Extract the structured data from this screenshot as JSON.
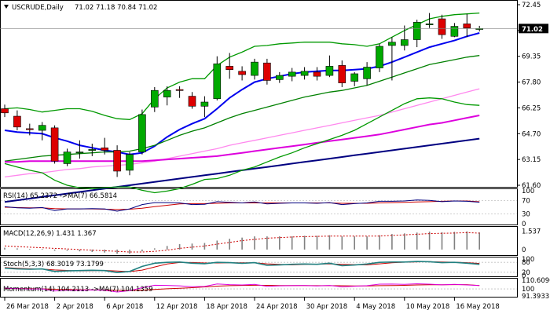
{
  "header": {
    "symbol": "USCRUDE,Daily",
    "ohlc": "71.02 71.18 70.84 71.02"
  },
  "price_panel": {
    "y_ticks": [
      "72.45",
      "70.90",
      "69.35",
      "67.80",
      "66.25",
      "64.70",
      "63.15",
      "61.60"
    ],
    "current_price": "71.02"
  },
  "rsi_panel": {
    "label": "RSI(14) 65.2372  ->MA(7) 66.5814",
    "y_ticks": [
      "100",
      "70",
      "30",
      "0"
    ]
  },
  "macd_panel": {
    "label": "MACD(12,26,9) 1.431 1.367",
    "y_ticks": [
      "1.537",
      "0"
    ]
  },
  "stoch_panel": {
    "label": "Stoch(5,3,3) 68.3019 73.1799",
    "y_ticks": [
      "100",
      "80",
      "20",
      "0"
    ]
  },
  "momentum_panel": {
    "label": "Momentum(14) 104.2113  ->MA(7) 104.1359",
    "y_ticks": [
      "110.6096",
      "100",
      "91.3933"
    ]
  },
  "x_labels": [
    "26 Mar 2018",
    "2 Apr 2018",
    "6 Apr 2018",
    "12 Apr 2018",
    "18 Apr 2018",
    "24 Apr 2018",
    "30 Apr 2018",
    "4 May 2018",
    "10 May 2018",
    "16 May 2018"
  ],
  "colors": {
    "bull": "#00aa00",
    "bear": "#dd0000",
    "ma_blue": "#0000ee",
    "ma_green": "#008000",
    "ma_magenta": "#dd00dd",
    "ma_pink": "#ff88ee",
    "ma_navy": "#000080",
    "bb_green": "#009900",
    "osc_teal": "#208080",
    "osc_red": "#cc0000",
    "grid": "#c0c0c0"
  },
  "chart_data": {
    "type": "candlestick",
    "title": "USCRUDE,Daily",
    "ylim": [
      61.6,
      72.45
    ],
    "candles": [
      {
        "o": 66.2,
        "h": 66.45,
        "l": 65.7,
        "c": 65.95
      },
      {
        "o": 65.75,
        "h": 66.1,
        "l": 64.9,
        "c": 65.1
      },
      {
        "o": 65.0,
        "h": 65.3,
        "l": 64.6,
        "c": 64.95
      },
      {
        "o": 64.9,
        "h": 65.4,
        "l": 64.3,
        "c": 65.2
      },
      {
        "o": 65.05,
        "h": 65.2,
        "l": 62.9,
        "c": 63.05
      },
      {
        "o": 62.9,
        "h": 63.8,
        "l": 62.75,
        "c": 63.6
      },
      {
        "o": 63.6,
        "h": 64.3,
        "l": 63.2,
        "c": 63.6
      },
      {
        "o": 63.75,
        "h": 64.1,
        "l": 63.35,
        "c": 63.75
      },
      {
        "o": 63.85,
        "h": 64.45,
        "l": 63.45,
        "c": 63.7
      },
      {
        "o": 63.7,
        "h": 64.0,
        "l": 62.1,
        "c": 62.45
      },
      {
        "o": 62.5,
        "h": 63.6,
        "l": 62.2,
        "c": 63.45
      },
      {
        "o": 63.6,
        "h": 66.15,
        "l": 63.45,
        "c": 65.85
      },
      {
        "o": 66.3,
        "h": 67.5,
        "l": 66.0,
        "c": 67.3
      },
      {
        "o": 66.9,
        "h": 67.55,
        "l": 66.4,
        "c": 67.3
      },
      {
        "o": 67.35,
        "h": 67.55,
        "l": 66.85,
        "c": 67.3
      },
      {
        "o": 66.95,
        "h": 67.2,
        "l": 66.2,
        "c": 66.35
      },
      {
        "o": 66.35,
        "h": 66.95,
        "l": 65.7,
        "c": 66.6
      },
      {
        "o": 66.8,
        "h": 69.35,
        "l": 66.7,
        "c": 68.9
      },
      {
        "o": 68.75,
        "h": 69.55,
        "l": 68.0,
        "c": 68.55
      },
      {
        "o": 68.45,
        "h": 68.75,
        "l": 67.9,
        "c": 68.25
      },
      {
        "o": 68.2,
        "h": 69.2,
        "l": 67.95,
        "c": 69.0
      },
      {
        "o": 68.95,
        "h": 69.2,
        "l": 67.65,
        "c": 67.9
      },
      {
        "o": 67.95,
        "h": 68.4,
        "l": 67.75,
        "c": 68.2
      },
      {
        "o": 68.15,
        "h": 68.65,
        "l": 67.85,
        "c": 68.4
      },
      {
        "o": 68.2,
        "h": 68.7,
        "l": 67.95,
        "c": 68.45
      },
      {
        "o": 68.4,
        "h": 68.7,
        "l": 67.9,
        "c": 68.15
      },
      {
        "o": 68.2,
        "h": 69.4,
        "l": 68.1,
        "c": 68.75
      },
      {
        "o": 68.8,
        "h": 69.1,
        "l": 67.5,
        "c": 67.75
      },
      {
        "o": 67.85,
        "h": 68.4,
        "l": 67.55,
        "c": 68.3
      },
      {
        "o": 68.0,
        "h": 69.0,
        "l": 67.6,
        "c": 68.7
      },
      {
        "o": 68.65,
        "h": 70.1,
        "l": 68.4,
        "c": 69.95
      },
      {
        "o": 70.0,
        "h": 70.5,
        "l": 67.9,
        "c": 70.2
      },
      {
        "o": 70.0,
        "h": 71.2,
        "l": 69.7,
        "c": 70.35
      },
      {
        "o": 70.35,
        "h": 71.55,
        "l": 69.9,
        "c": 71.4
      },
      {
        "o": 71.3,
        "h": 71.95,
        "l": 71.05,
        "c": 71.3
      },
      {
        "o": 71.6,
        "h": 71.85,
        "l": 70.4,
        "c": 70.65
      },
      {
        "o": 70.55,
        "h": 71.35,
        "l": 70.5,
        "c": 71.15
      },
      {
        "o": 71.3,
        "h": 71.9,
        "l": 70.5,
        "c": 71.05
      },
      {
        "o": 71.02,
        "h": 71.18,
        "l": 70.84,
        "c": 71.02
      }
    ],
    "moving_averages": [
      {
        "name": "ma_fast",
        "color": "#0000ee",
        "values": [
          64.9,
          64.8,
          64.75,
          64.7,
          64.45,
          64.25,
          64.0,
          63.85,
          63.7,
          63.6,
          63.45,
          63.55,
          63.95,
          64.5,
          64.95,
          65.3,
          65.6,
          66.2,
          66.85,
          67.35,
          67.8,
          68.0,
          68.15,
          68.3,
          68.4,
          68.45,
          68.5,
          68.5,
          68.55,
          68.6,
          68.75,
          69.0,
          69.3,
          69.6,
          69.9,
          70.1,
          70.3,
          70.55,
          70.75
        ]
      },
      {
        "name": "ma_mid",
        "color": "#008000",
        "values": [
          63.05,
          63.15,
          63.25,
          63.35,
          63.4,
          63.45,
          63.5,
          63.55,
          63.6,
          63.6,
          63.65,
          63.8,
          64.0,
          64.3,
          64.6,
          64.85,
          65.05,
          65.35,
          65.65,
          65.9,
          66.1,
          66.3,
          66.5,
          66.7,
          66.9,
          67.05,
          67.2,
          67.3,
          67.45,
          67.6,
          67.85,
          68.1,
          68.35,
          68.6,
          68.85,
          69.0,
          69.15,
          69.3,
          69.4
        ]
      },
      {
        "name": "ma_pink",
        "color": "#ff88ee",
        "values": [
          62.1,
          62.2,
          62.3,
          62.35,
          62.45,
          62.55,
          62.6,
          62.7,
          62.75,
          62.8,
          62.85,
          62.95,
          63.05,
          63.2,
          63.35,
          63.5,
          63.65,
          63.8,
          64.0,
          64.15,
          64.3,
          64.45,
          64.6,
          64.75,
          64.9,
          65.05,
          65.2,
          65.35,
          65.5,
          65.65,
          65.8,
          66.0,
          66.2,
          66.4,
          66.6,
          66.8,
          67.0,
          67.2,
          67.4
        ]
      },
      {
        "name": "ma_magenta",
        "color": "#dd00dd",
        "values": [
          63.0,
          63.0,
          63.05,
          63.05,
          63.05,
          63.05,
          63.05,
          63.05,
          63.05,
          63.05,
          63.05,
          63.05,
          63.1,
          63.15,
          63.2,
          63.25,
          63.3,
          63.35,
          63.45,
          63.55,
          63.65,
          63.75,
          63.85,
          63.95,
          64.05,
          64.15,
          64.25,
          64.35,
          64.45,
          64.55,
          64.65,
          64.8,
          64.95,
          65.1,
          65.25,
          65.35,
          65.5,
          65.65,
          65.8
        ]
      },
      {
        "name": "ma_navy",
        "color": "#000080",
        "values": [
          60.6,
          60.7,
          60.8,
          60.9,
          61.0,
          61.1,
          61.2,
          61.3,
          61.4,
          61.5,
          61.6,
          61.7,
          61.8,
          61.9,
          62.0,
          62.1,
          62.2,
          62.3,
          62.4,
          62.5,
          62.6,
          62.7,
          62.8,
          62.9,
          63.0,
          63.1,
          63.2,
          63.3,
          63.4,
          63.5,
          63.6,
          63.7,
          63.8,
          63.9,
          64.0,
          64.1,
          64.2,
          64.3,
          64.4
        ]
      },
      {
        "name": "bb_upper",
        "color": "#009900",
        "values": [
          66.2,
          66.25,
          66.15,
          66.0,
          66.1,
          66.2,
          66.2,
          66.05,
          65.8,
          65.6,
          65.55,
          65.9,
          66.8,
          67.45,
          67.8,
          68.0,
          68.0,
          68.8,
          69.3,
          69.6,
          69.95,
          70.0,
          70.1,
          70.15,
          70.2,
          70.2,
          70.2,
          70.1,
          70.05,
          69.95,
          70.1,
          70.5,
          70.9,
          71.25,
          71.6,
          71.75,
          71.85,
          71.9,
          71.95
        ]
      },
      {
        "name": "bb_lower",
        "color": "#009900",
        "values": [
          62.9,
          62.7,
          62.5,
          62.35,
          61.9,
          61.6,
          61.45,
          61.4,
          61.45,
          61.5,
          61.5,
          61.3,
          61.15,
          61.25,
          61.4,
          61.65,
          61.95,
          62.0,
          62.2,
          62.5,
          62.7,
          63.0,
          63.3,
          63.55,
          63.85,
          64.1,
          64.35,
          64.6,
          64.9,
          65.3,
          65.7,
          66.1,
          66.5,
          66.8,
          66.85,
          66.8,
          66.6,
          66.45,
          66.4
        ]
      }
    ],
    "rsi": [
      52,
      48,
      47,
      49,
      40,
      45,
      45,
      46,
      45,
      38,
      45,
      58,
      64,
      64,
      63,
      58,
      59,
      67,
      65,
      63,
      66,
      60,
      62,
      63,
      63,
      62,
      64,
      58,
      61,
      63,
      68,
      68,
      69,
      72,
      71,
      67,
      69,
      68,
      65.2
    ],
    "rsi_ma": [
      50,
      49,
      48,
      48,
      46,
      45,
      45,
      45,
      44,
      43,
      44,
      47,
      52,
      56,
      60,
      61,
      61,
      62,
      63,
      63,
      63,
      63,
      63,
      63,
      63,
      63,
      63,
      62,
      62,
      62,
      63,
      64,
      65,
      66,
      67,
      68,
      69,
      69,
      66.6
    ],
    "macd_hist": [
      0.15,
      0.1,
      0.05,
      0.05,
      -0.1,
      -0.1,
      -0.15,
      -0.2,
      -0.25,
      -0.35,
      -0.35,
      -0.15,
      0.1,
      0.3,
      0.45,
      0.5,
      0.55,
      0.75,
      0.9,
      1.0,
      1.1,
      1.1,
      1.1,
      1.1,
      1.15,
      1.15,
      1.2,
      1.1,
      1.1,
      1.1,
      1.2,
      1.3,
      1.35,
      1.42,
      1.5,
      1.45,
      1.48,
      1.52,
      1.43
    ],
    "macd_signal": [
      0.3,
      0.25,
      0.2,
      0.15,
      0.1,
      0.05,
      0.0,
      -0.05,
      -0.1,
      -0.15,
      -0.2,
      -0.2,
      -0.15,
      -0.05,
      0.1,
      0.2,
      0.3,
      0.45,
      0.6,
      0.75,
      0.85,
      0.95,
      1.0,
      1.05,
      1.08,
      1.1,
      1.12,
      1.12,
      1.12,
      1.12,
      1.13,
      1.18,
      1.23,
      1.28,
      1.33,
      1.36,
      1.38,
      1.42,
      1.37
    ],
    "stoch_k": [
      45,
      40,
      38,
      40,
      25,
      28,
      30,
      32,
      30,
      18,
      25,
      55,
      75,
      80,
      82,
      75,
      72,
      80,
      78,
      74,
      78,
      62,
      65,
      68,
      70,
      68,
      75,
      60,
      64,
      70,
      80,
      82,
      82,
      85,
      84,
      78,
      80,
      75,
      68.3
    ],
    "stoch_d": [
      48,
      44,
      41,
      39,
      34,
      31,
      28,
      30,
      31,
      27,
      24,
      33,
      52,
      70,
      79,
      79,
      76,
      76,
      77,
      77,
      77,
      71,
      68,
      65,
      68,
      69,
      71,
      68,
      66,
      65,
      71,
      77,
      81,
      83,
      84,
      82,
      81,
      78,
      73.2
    ],
    "momentum": [
      101.0,
      100.2,
      99.8,
      100.0,
      97.5,
      98.4,
      98.5,
      98.8,
      98.3,
      96.2,
      97.8,
      101.5,
      104.5,
      104.3,
      103.8,
      102.6,
      103.0,
      106.0,
      105.2,
      104.8,
      105.5,
      103.2,
      103.8,
      104.0,
      104.2,
      103.6,
      104.3,
      102.5,
      103.3,
      104.0,
      105.8,
      105.9,
      105.5,
      106.3,
      105.8,
      104.9,
      105.5,
      104.8,
      104.2
    ],
    "momentum_ma": [
      100.5,
      100.4,
      100.2,
      100.0,
      99.6,
      99.3,
      99.0,
      98.8,
      98.7,
      98.2,
      98.0,
      98.6,
      99.4,
      100.1,
      100.8,
      101.5,
      102.4,
      103.4,
      104.0,
      104.3,
      104.5,
      104.4,
      104.2,
      104.1,
      104.1,
      104.0,
      104.0,
      103.9,
      103.7,
      103.7,
      104.0,
      104.2,
      104.4,
      104.8,
      105.0,
      105.1,
      105.2,
      105.2,
      104.1
    ]
  }
}
